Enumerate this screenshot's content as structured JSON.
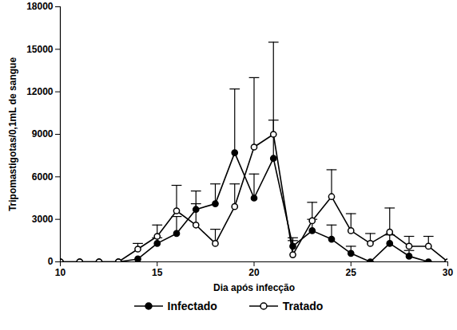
{
  "chart_data": {
    "type": "line",
    "x_label": "Dia após infecção",
    "y_label": "Tripomastigotas/0,1mL de sangue",
    "x": [
      10,
      11,
      12,
      13,
      14,
      15,
      16,
      17,
      18,
      19,
      20,
      21,
      22,
      23,
      24,
      25,
      26,
      27,
      28,
      29,
      30
    ],
    "xlim": [
      10,
      30
    ],
    "xticks": [
      10,
      15,
      20,
      25,
      30
    ],
    "ylim": [
      0,
      18000
    ],
    "yticks": [
      0,
      3000,
      6000,
      9000,
      12000,
      15000,
      18000
    ],
    "legend": "bottom",
    "series": [
      {
        "name": "Infectado",
        "color": "#000000",
        "marker": "circle",
        "values": [
          0,
          0,
          0,
          0,
          200,
          1300,
          2000,
          3700,
          4100,
          7700,
          4500,
          7300,
          1100,
          2200,
          1600,
          600,
          0,
          1300,
          400,
          0,
          0
        ],
        "errors": [
          0,
          0,
          0,
          0,
          0,
          400,
          1200,
          400,
          1400,
          4500,
          1700,
          2700,
          600,
          800,
          1000,
          500,
          0,
          600,
          400,
          0,
          0
        ]
      },
      {
        "name": "Tratado",
        "color": "#000000",
        "marker": "open circle",
        "values": [
          0,
          0,
          0,
          0,
          900,
          1800,
          3600,
          2600,
          1300,
          3900,
          8100,
          9000,
          500,
          2900,
          4600,
          2200,
          1300,
          2100,
          1100,
          1100,
          0
        ],
        "errors": [
          0,
          0,
          0,
          0,
          400,
          800,
          1800,
          2400,
          1000,
          1600,
          4900,
          6500,
          1000,
          1300,
          1900,
          1200,
          700,
          1700,
          700,
          700,
          0
        ]
      }
    ]
  }
}
